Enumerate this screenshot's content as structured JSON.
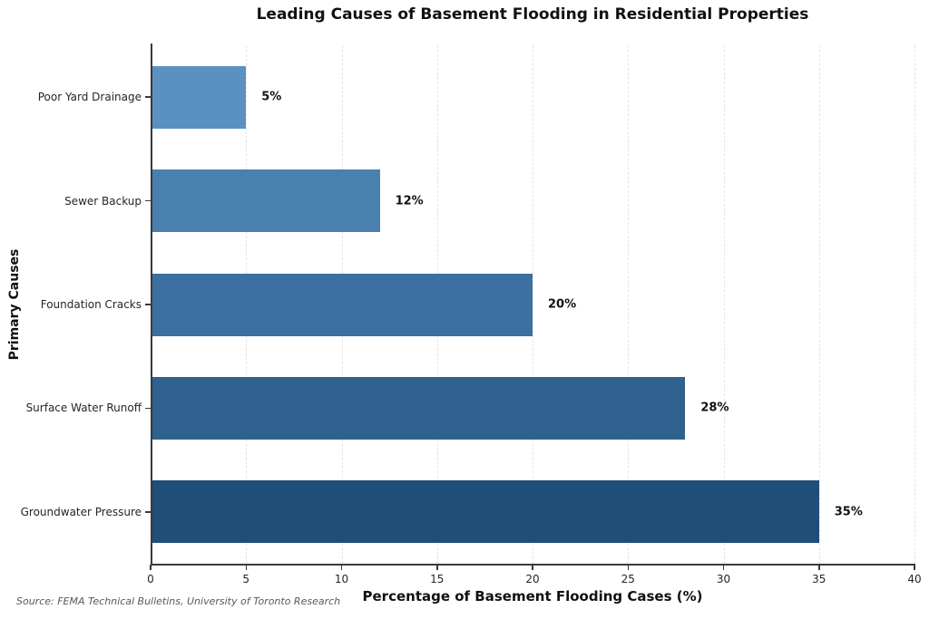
{
  "chart_data": {
    "type": "bar",
    "orientation": "horizontal",
    "title": "Leading Causes of Basement Flooding in Residential Properties",
    "xlabel": "Percentage of Basement Flooding Cases (%)",
    "ylabel": "Primary Causes",
    "source": "Source: FEMA Technical Bulletins, University of Toronto Research",
    "categories_top_to_bottom": [
      "Poor Yard Drainage",
      "Sewer Backup",
      "Foundation Cracks",
      "Surface Water Runoff",
      "Groundwater Pressure"
    ],
    "values": [
      5,
      12,
      20,
      28,
      35
    ],
    "value_labels": [
      "5%",
      "12%",
      "20%",
      "28%",
      "35%"
    ],
    "bar_colors": [
      "#5b91c1",
      "#4a80ad",
      "#3c70a0",
      "#2e618e",
      "#1f4e78"
    ],
    "xlim": [
      0,
      40
    ],
    "xticks": [
      0,
      5,
      10,
      15,
      20,
      25,
      30,
      35,
      40
    ],
    "grid": "vertical-dashed",
    "legend": "none"
  }
}
